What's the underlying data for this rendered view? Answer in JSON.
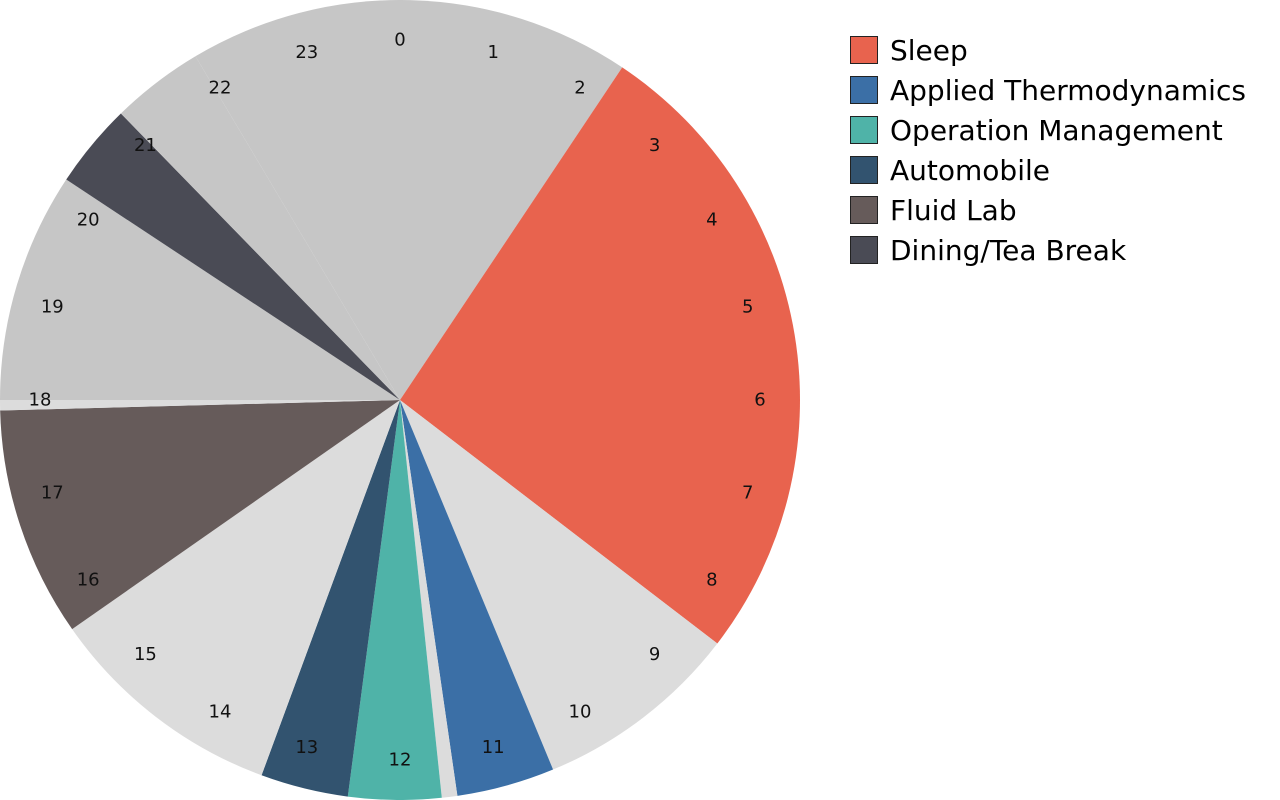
{
  "chart_data": {
    "type": "pie",
    "title": "",
    "legend_position": "top-right",
    "hour_labels": [
      "0",
      "1",
      "2",
      "3",
      "4",
      "5",
      "6",
      "7",
      "8",
      "9",
      "10",
      "11",
      "12",
      "13",
      "14",
      "15",
      "16",
      "17",
      "18",
      "19",
      "20",
      "21",
      "22",
      "23"
    ],
    "series": [
      {
        "name": "Sleep",
        "color": "#E8634E"
      },
      {
        "name": "Applied Thermodynamics",
        "color": "#3B6FA6"
      },
      {
        "name": "Operation Management",
        "color": "#4FB3A8"
      },
      {
        "name": "Automobile",
        "color": "#32536F"
      },
      {
        "name": "Fluid Lab",
        "color": "#665B5A"
      },
      {
        "name": "Dining/Tea Break",
        "color": "#4A4B55"
      }
    ],
    "slices": [
      {
        "activity": "",
        "start_hour": 21.95,
        "end_hour": 2.25,
        "color": "#C6C6C6"
      },
      {
        "activity": "Sleep",
        "start_hour": 2.25,
        "end_hour": 8.5,
        "color": "#E8634E"
      },
      {
        "activity": "",
        "start_hour": 8.5,
        "end_hour": 10.5,
        "color": "#DCDCDC"
      },
      {
        "activity": "Applied Thermodynamics",
        "start_hour": 10.5,
        "end_hour": 11.45,
        "color": "#3B6FA6"
      },
      {
        "activity": "",
        "start_hour": 11.45,
        "end_hour": 11.6,
        "color": "#DCDCDC"
      },
      {
        "activity": "Operation Management",
        "start_hour": 11.6,
        "end_hour": 12.5,
        "color": "#4FB3A8"
      },
      {
        "activity": "Automobile",
        "start_hour": 12.5,
        "end_hour": 13.35,
        "color": "#32536F"
      },
      {
        "activity": "",
        "start_hour": 13.35,
        "end_hour": 15.67,
        "color": "#DCDCDC"
      },
      {
        "activity": "Fluid Lab",
        "start_hour": 15.67,
        "end_hour": 17.9,
        "color": "#665B5A"
      },
      {
        "activity": "",
        "start_hour": 17.9,
        "end_hour": 18.0,
        "color": "#DCDCDC"
      },
      {
        "activity": "",
        "start_hour": 18.0,
        "end_hour": 20.23,
        "color": "#C6C6C6"
      },
      {
        "activity": "Dining/Tea Break",
        "start_hour": 20.23,
        "end_hour": 21.05,
        "color": "#4A4B55"
      },
      {
        "activity": "",
        "start_hour": 21.05,
        "end_hour": 21.95,
        "color": "#C6C6C6"
      }
    ]
  }
}
